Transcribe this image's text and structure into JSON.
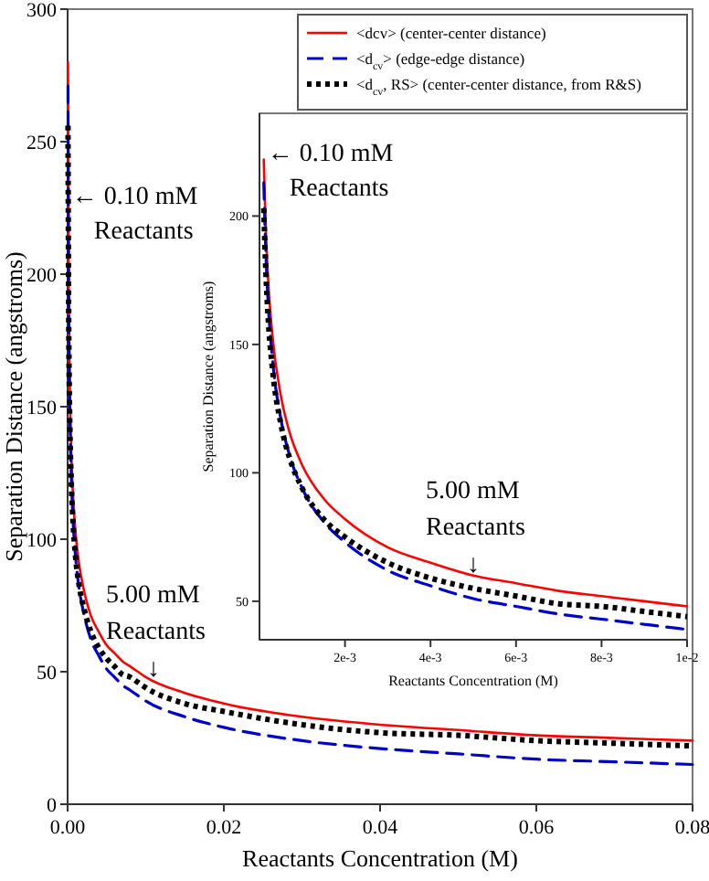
{
  "chart_data": [
    {
      "type": "line",
      "xlabel": "Reactants Concentration (M)",
      "ylabel": "Separation Distance (angstroms)",
      "xlim": [
        0,
        0.08
      ],
      "ylim": [
        0,
        300
      ],
      "xticks": [
        {
          "value": 0,
          "label": "0.00"
        },
        {
          "value": 0.02,
          "label": "0.02"
        },
        {
          "value": 0.04,
          "label": "0.04"
        },
        {
          "value": 0.06,
          "label": "0.06"
        },
        {
          "value": 0.08,
          "label": "0.08"
        }
      ],
      "yticks": [
        0,
        50,
        100,
        150,
        200,
        250,
        300
      ],
      "legend": "top right",
      "annotations": [
        {
          "text": "← 0.10 mM\nReactants",
          "x": 0.0001,
          "y": 230
        },
        {
          "text": "5.00 mM\nReactants\n↓",
          "x": 0.011,
          "y": 47
        }
      ],
      "x": [
        5e-05,
        0.00015,
        0.0002,
        0.0003,
        0.0005,
        0.0007,
        0.001,
        0.0015,
        0.002,
        0.003,
        0.004,
        0.005,
        0.006,
        0.007,
        0.008,
        0.009,
        0.01,
        0.015,
        0.02,
        0.03,
        0.04,
        0.05,
        0.06,
        0.07,
        0.08
      ],
      "series": [
        {
          "name": "<dcv> (center-center distance)",
          "color": "#ff0000",
          "line_style": "solid",
          "values": [
            280,
            194,
            176,
            154,
            130,
            116,
            103,
            90,
            82,
            71,
            65,
            60,
            57,
            54,
            52,
            50,
            48,
            42,
            38,
            33,
            30,
            28,
            26,
            25,
            24
          ]
        },
        {
          "name": "<d$_{cv}$> (edge-edge distance)",
          "color": "#0000cc",
          "line_style": "dashed",
          "values": [
            271,
            185,
            167,
            145,
            121,
            107,
            94,
            81,
            73,
            62,
            56,
            51,
            48,
            45,
            43,
            41,
            39,
            33,
            29,
            24,
            21,
            19,
            17,
            16,
            15
          ]
        },
        {
          "name": "<d$_{cv}$, RS> (center-center distance, from R&S)",
          "color": "#000000",
          "line_style": "dotted",
          "values": [
            256,
            178,
            161,
            141,
            119,
            106,
            94,
            82,
            75,
            65,
            59,
            55,
            52,
            49,
            48,
            46,
            44,
            38,
            35,
            30,
            27,
            26,
            24,
            23,
            22
          ]
        }
      ]
    },
    {
      "type": "line",
      "xlabel": "Reactants Concentration (M)",
      "ylabel": "Separation Distance (angstroms)",
      "xlim": [
        0,
        0.01
      ],
      "ylim": [
        35,
        240
      ],
      "xticks": [
        {
          "value": 0.002,
          "label": "2e-3"
        },
        {
          "value": 0.004,
          "label": "4e-3"
        },
        {
          "value": 0.006,
          "label": "6e-3"
        },
        {
          "value": 0.008,
          "label": "8e-3"
        },
        {
          "value": 0.01,
          "label": "1e-2"
        }
      ],
      "yticks": [
        50,
        100,
        150,
        200
      ],
      "annotations": [
        {
          "text": "← 0.10 mM\nReactants",
          "x": 0.0001,
          "y": 225
        },
        {
          "text": "5.00 mM\nReactants\n↓",
          "x": 0.005,
          "y": 60
        }
      ],
      "x": [
        0.0001,
        0.00015,
        0.0002,
        0.0003,
        0.0005,
        0.0007,
        0.001,
        0.0015,
        0.002,
        0.003,
        0.004,
        0.005,
        0.006,
        0.007,
        0.008,
        0.009,
        0.01
      ],
      "series": [
        {
          "color": "#ff0000",
          "line_style": "solid",
          "values": [
            222,
            194,
            176,
            154,
            130,
            116,
            103,
            90,
            82,
            71,
            65,
            60,
            57,
            54,
            52,
            50,
            48
          ]
        },
        {
          "color": "#0000cc",
          "line_style": "dashed",
          "values": [
            213,
            185,
            167,
            145,
            121,
            107,
            94,
            81,
            73,
            62,
            56,
            51,
            48,
            45,
            43,
            41,
            39
          ]
        },
        {
          "color": "#000000",
          "line_style": "dotted",
          "values": [
            203,
            178,
            161,
            141,
            119,
            106,
            94,
            82,
            75,
            65,
            59,
            55,
            52,
            49,
            48,
            46,
            44
          ]
        }
      ]
    }
  ]
}
